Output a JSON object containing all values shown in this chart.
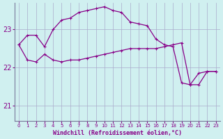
{
  "xlabel": "Windchill (Refroidissement éolien,°C)",
  "bg_color": "#d0f0f0",
  "plot_bg_color": "#d0f0f0",
  "grid_color": "#aaaacc",
  "line_color": "#880088",
  "x_ticks": [
    0,
    1,
    2,
    3,
    4,
    5,
    6,
    7,
    8,
    9,
    10,
    11,
    12,
    13,
    14,
    15,
    16,
    17,
    18,
    19,
    20,
    21,
    22,
    23
  ],
  "y_ticks": [
    21,
    22,
    23
  ],
  "ylim": [
    20.6,
    23.7
  ],
  "xlim": [
    -0.5,
    23.5
  ],
  "line1_x": [
    0,
    1,
    2,
    3,
    4,
    5,
    6,
    7,
    8,
    9,
    10,
    11,
    12,
    13,
    14,
    15,
    16,
    17,
    18,
    19,
    20,
    21,
    22,
    23
  ],
  "line1_y": [
    22.6,
    22.85,
    22.85,
    22.55,
    23.0,
    23.25,
    23.3,
    23.45,
    23.5,
    23.55,
    23.6,
    23.5,
    23.45,
    23.2,
    23.15,
    23.1,
    22.75,
    22.6,
    22.55,
    21.6,
    21.55,
    21.85,
    21.9,
    21.9
  ],
  "line2_x": [
    0,
    1,
    2,
    3,
    4,
    5,
    6,
    7,
    8,
    9,
    10,
    11,
    12,
    13,
    14,
    15,
    16,
    17,
    18,
    19,
    20,
    21,
    22,
    23
  ],
  "line2_y": [
    22.6,
    22.2,
    22.15,
    22.35,
    22.2,
    22.15,
    22.2,
    22.2,
    22.25,
    22.3,
    22.35,
    22.4,
    22.45,
    22.5,
    22.5,
    22.5,
    22.5,
    22.55,
    22.6,
    22.65,
    21.55,
    21.55,
    21.9,
    21.9
  ]
}
